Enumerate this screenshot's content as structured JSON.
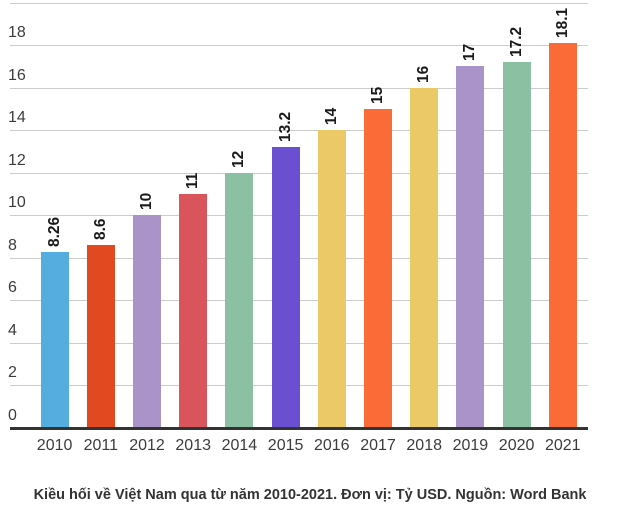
{
  "caption": "Kiều hối về Việt Nam qua từ năm 2010-2021. Đơn vị: Tỷ USD. Nguồn: Word Bank",
  "chart_data": {
    "type": "bar",
    "title": "",
    "xlabel": "",
    "ylabel": "",
    "categories": [
      "2010",
      "2011",
      "2012",
      "2013",
      "2014",
      "2015",
      "2016",
      "2017",
      "2018",
      "2019",
      "2020",
      "2021"
    ],
    "values": [
      8.26,
      8.6,
      10,
      11,
      12,
      13.2,
      14,
      15,
      16,
      17,
      17.2,
      18.1
    ],
    "value_labels": [
      "8.26",
      "8.6",
      "10",
      "11",
      "12",
      "13.2",
      "14",
      "15",
      "16",
      "17",
      "17.2",
      "18.1"
    ],
    "bar_colors": [
      "#55ACDE",
      "#E14A21",
      "#A993C8",
      "#DA545C",
      "#8CC0A2",
      "#6A4FD1",
      "#ECC967",
      "#FA6B38",
      "#ECC967",
      "#A993C8",
      "#8CC0A2",
      "#FA6B38"
    ],
    "ylim": [
      0,
      20
    ],
    "ytick_step": 2,
    "ytick_labels": [
      "0",
      "2",
      "4",
      "6",
      "8",
      "10",
      "12",
      "14",
      "16",
      "18"
    ],
    "grid": true,
    "legend": "none",
    "value_label_rotation": -90,
    "grid_color": "#cccccc",
    "axis_line_color": "#333333",
    "tick_label_color": "#3c3c3c",
    "value_label_color": "#1a1a1a"
  }
}
